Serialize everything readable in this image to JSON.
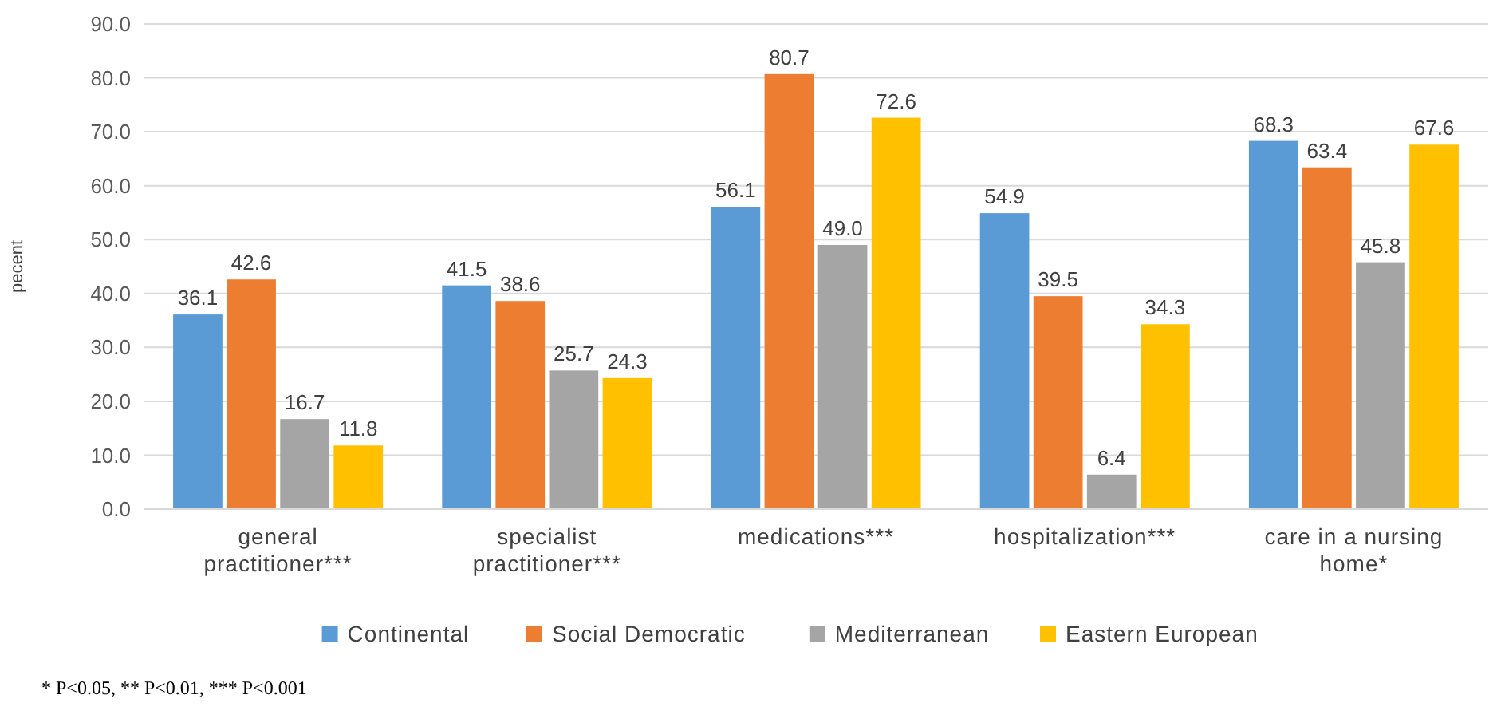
{
  "chart_data": {
    "type": "bar",
    "ylabel": "pecent",
    "categories": [
      "general practitioner***",
      "specialist practitioner***",
      "medications***",
      "hospitalization***",
      "care in a nursing home*"
    ],
    "series": [
      {
        "name": "Continental",
        "color": "#5b9bd5",
        "values": [
          36.1,
          41.5,
          56.1,
          54.9,
          68.3
        ],
        "value_labels": [
          "36.1",
          "41.5",
          "56.1",
          "54.9",
          "68.3"
        ]
      },
      {
        "name": "Social Democratic",
        "color": "#ed7d31",
        "values": [
          42.6,
          38.6,
          80.7,
          39.5,
          63.4
        ],
        "value_labels": [
          "42.6",
          "38.6",
          "80.7",
          "39.5",
          "63.4"
        ]
      },
      {
        "name": "Mediterranean",
        "color": "#a5a5a5",
        "values": [
          16.7,
          25.7,
          49.0,
          6.4,
          45.8
        ],
        "value_labels": [
          "16.7",
          "25.7",
          "49.0",
          "6.4",
          "45.8"
        ]
      },
      {
        "name": "Eastern European",
        "color": "#ffc000",
        "values": [
          11.8,
          24.3,
          72.6,
          34.3,
          67.6
        ],
        "value_labels": [
          "11.8",
          "24.3",
          "72.6",
          "34.3",
          "67.6"
        ]
      }
    ],
    "ylim": [
      0,
      90
    ],
    "yticks": [
      {
        "value": 0,
        "label": "0.0"
      },
      {
        "value": 10,
        "label": "10.0"
      },
      {
        "value": 20,
        "label": "20.0"
      },
      {
        "value": 30,
        "label": "30.0"
      },
      {
        "value": 40,
        "label": "40.0"
      },
      {
        "value": 50,
        "label": "50.0"
      },
      {
        "value": 60,
        "label": "60.0"
      },
      {
        "value": 70,
        "label": "70.0"
      },
      {
        "value": 80,
        "label": "80.0"
      },
      {
        "value": 90,
        "label": "90.0"
      }
    ],
    "grid": "y",
    "legend": "bottom",
    "annotations": [
      "* P<0.05, ** P<0.01, *** P<0.001"
    ]
  }
}
